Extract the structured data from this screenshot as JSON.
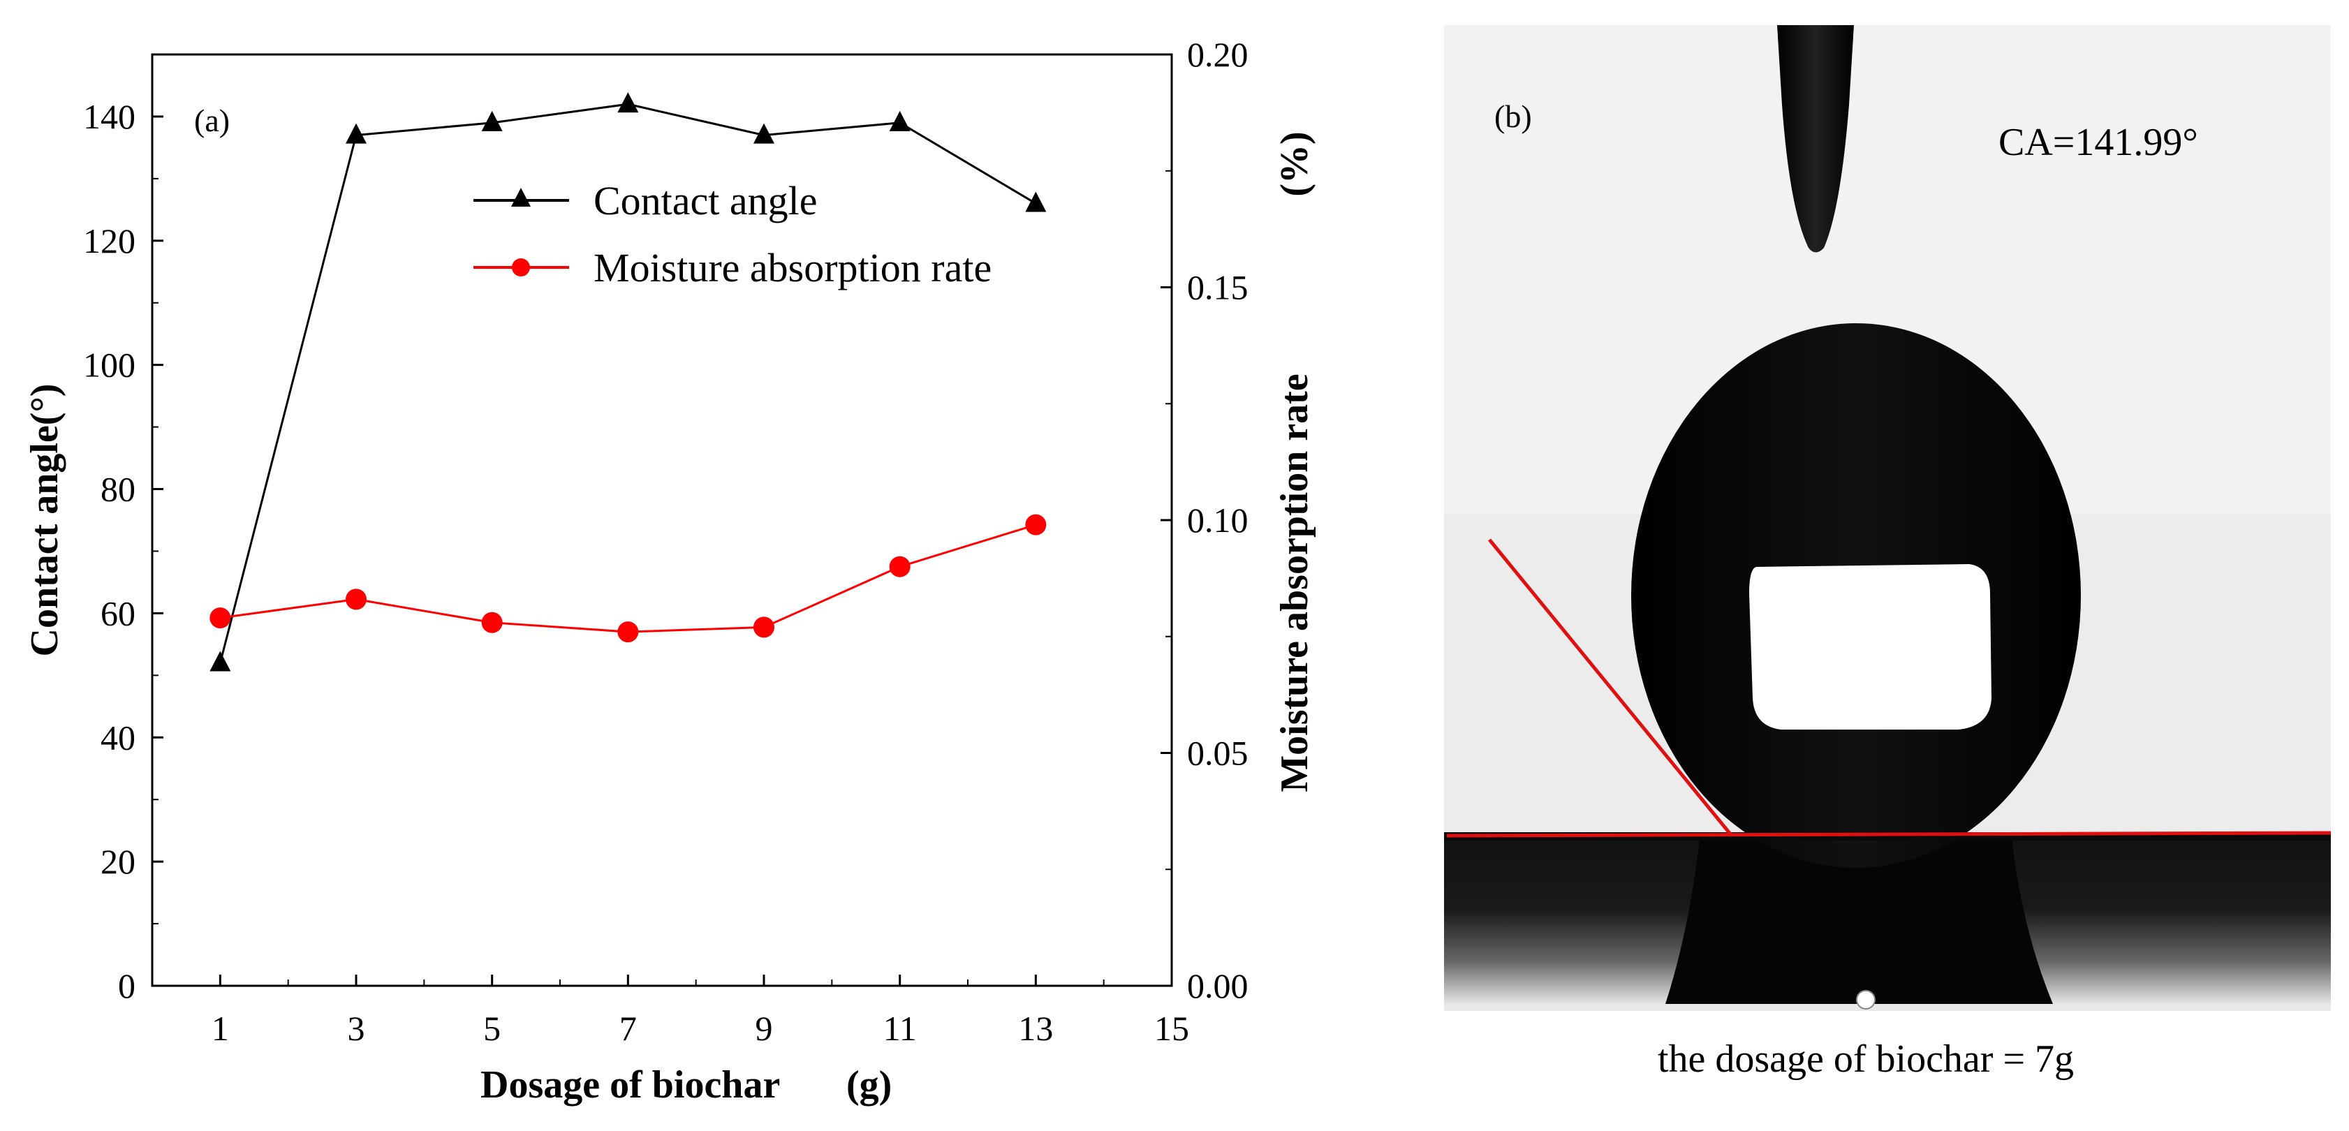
{
  "chart_data": {
    "type": "line",
    "panel_label": "(a)",
    "x": [
      1,
      3,
      5,
      7,
      9,
      11,
      13
    ],
    "xticks": [
      "1",
      "3",
      "5",
      "7",
      "9",
      "11",
      "13",
      "15"
    ],
    "xlim": [
      0,
      15
    ],
    "xlabel": "Dosage of biochar",
    "xlabel_unit": "(g)",
    "ylabel_left": "Contact  angle(°)",
    "ylim_left": [
      0,
      150
    ],
    "yticks_left": [
      "0",
      "20",
      "40",
      "60",
      "80",
      "100",
      "120",
      "140"
    ],
    "ylabel_right": "Moisture absorption rate",
    "ylabel_right_unit": "(%)",
    "ylim_right": [
      0,
      0.2
    ],
    "yticks_right": [
      "0.00",
      "0.05",
      "0.10",
      "0.15",
      "0.20"
    ],
    "legend_position": "upper-center",
    "series": [
      {
        "name": "Contact angle",
        "axis": "left",
        "color": "#000000",
        "marker": "triangle",
        "values": [
          52,
          137,
          139,
          142,
          137,
          139,
          126
        ]
      },
      {
        "name": "Moisture absorption rate",
        "axis": "right",
        "color": "#ff0000",
        "marker": "circle",
        "values": [
          0.079,
          0.083,
          0.078,
          0.076,
          0.077,
          0.09,
          0.099
        ]
      }
    ]
  },
  "photo": {
    "panel_label": "(b)",
    "contact_angle_text": "CA=141.99°",
    "caption": "the dosage of biochar = 7g"
  }
}
